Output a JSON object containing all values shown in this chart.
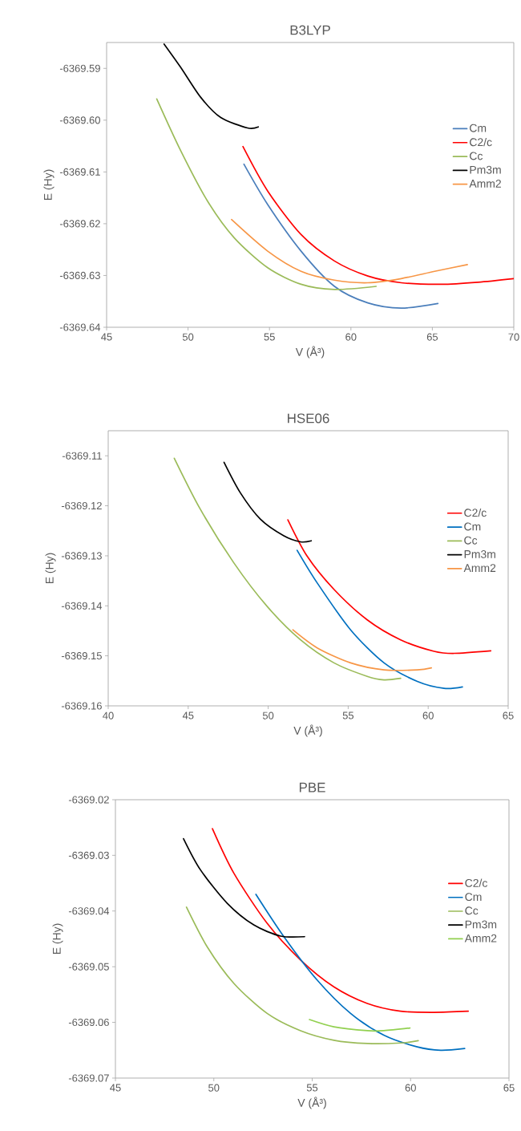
{
  "chart_data": [
    {
      "type": "line",
      "title": "B3LYP",
      "xlabel": "V (Å³)",
      "ylabel": "E  (Hy)",
      "xlim": [
        45,
        70
      ],
      "ylim": [
        -6369.64,
        -6369.585
      ],
      "xticks": [
        45,
        50,
        55,
        60,
        65,
        70
      ],
      "yticks": [
        -6369.59,
        {
          "value": -6369.6,
          "label": "-6369.60"
        },
        -6369.61,
        -6369.62,
        -6369.63,
        -6369.64
      ],
      "legend": "right",
      "series": [
        {
          "name": "Cm",
          "color": "#4a7ebb",
          "x": [
            53.43,
            54.89,
            56.94,
            58.99,
            61.04,
            63.09,
            65.34
          ],
          "values": [
            -6369.6085,
            -6369.6163,
            -6369.6253,
            -6369.6321,
            -6369.6353,
            -6369.6363,
            -6369.6354
          ]
        },
        {
          "name": "C2/c",
          "color": "#ff0000",
          "x": [
            53.37,
            54.89,
            56.94,
            58.99,
            61.04,
            63.09,
            65.55,
            67.8,
            70
          ],
          "values": [
            -6369.6051,
            -6369.6137,
            -6369.6221,
            -6369.6272,
            -6369.6301,
            -6369.6314,
            -6369.6317,
            -6369.6313,
            -6369.6306
          ]
        },
        {
          "name": "Cc",
          "color": "#9bbb59",
          "x": [
            48.08,
            49.55,
            51.19,
            52.83,
            54.89,
            56.94,
            58.99,
            61.55
          ],
          "values": [
            -6369.5959,
            -6369.6059,
            -6369.6156,
            -6369.6227,
            -6369.6285,
            -6369.6317,
            -6369.6327,
            -6369.6321
          ]
        },
        {
          "name": "Pm3m",
          "color": "#000000",
          "x": [
            48.53,
            49.55,
            50.78,
            52.01,
            53.65,
            54.31
          ],
          "values": [
            -6369.5853,
            -6369.5898,
            -6369.5956,
            -6369.5995,
            -6369.6015,
            -6369.6013
          ]
        },
        {
          "name": "Amm2",
          "color": "#f79646",
          "x": [
            52.67,
            54.89,
            56.94,
            58.99,
            61.04,
            63.09,
            65.14,
            67.15
          ],
          "values": [
            -6369.6192,
            -6369.6253,
            -6369.6292,
            -6369.6309,
            -6369.6314,
            -6369.6306,
            -6369.6292,
            -6369.6279
          ]
        }
      ]
    },
    {
      "type": "line",
      "title": "HSE06",
      "xlabel": "V (Å³)",
      "ylabel": "E (Hy)",
      "xlim": [
        40,
        65
      ],
      "ylim": [
        -6369.16,
        -6369.105
      ],
      "xticks": [
        40,
        45,
        50,
        55,
        60,
        65
      ],
      "yticks": [
        -6369.11,
        -6369.12,
        -6369.13,
        -6369.14,
        -6369.15,
        -6369.16
      ],
      "legend": "right",
      "series": [
        {
          "name": "C2/c",
          "color": "#ff0000",
          "x": [
            51.23,
            52.44,
            54.11,
            56.19,
            58.28,
            60.37,
            61.62,
            63.91
          ],
          "values": [
            -6369.1228,
            -6369.1301,
            -6369.1367,
            -6369.1428,
            -6369.1468,
            -6369.1491,
            -6369.1495,
            -6369.149
          ]
        },
        {
          "name": "Cm",
          "color": "#0070c0",
          "x": [
            51.81,
            53.06,
            55.15,
            57.24,
            59.32,
            60.99,
            62.14
          ],
          "values": [
            -6369.1289,
            -6369.1354,
            -6369.1448,
            -6369.1514,
            -6369.1551,
            -6369.1565,
            -6369.1562
          ]
        },
        {
          "name": "Cc",
          "color": "#9bbb59",
          "x": [
            44.13,
            45.76,
            47.85,
            49.93,
            52.02,
            54.11,
            56.19,
            57.24,
            58.28
          ],
          "values": [
            -6369.1105,
            -6369.1207,
            -6369.1314,
            -6369.1401,
            -6369.1468,
            -6369.1514,
            -6369.1541,
            -6369.1548,
            -6369.1545
          ]
        },
        {
          "name": "Pm3m",
          "color": "#000000",
          "x": [
            47.24,
            48.26,
            49.52,
            50.98,
            52.02,
            52.69
          ],
          "values": [
            -6369.1113,
            -6369.1174,
            -6369.1227,
            -6369.126,
            -6369.1272,
            -6369.127
          ]
        },
        {
          "name": "Amm2",
          "color": "#f79646",
          "x": [
            51.54,
            53.06,
            55.15,
            57.24,
            59.32,
            60.2
          ],
          "values": [
            -6369.1448,
            -6369.1484,
            -6369.1514,
            -6369.1528,
            -6369.1528,
            -6369.1524
          ]
        }
      ]
    },
    {
      "type": "line",
      "title": "PBE",
      "xlabel": "V (Å³)",
      "ylabel": "E (Hy)",
      "xlim": [
        45,
        65
      ],
      "ylim": [
        -6369.07,
        -6369.02
      ],
      "xticks": [
        45,
        50,
        55,
        60,
        65
      ],
      "yticks": [
        -6369.02,
        -6369.03,
        -6369.04,
        -6369.05,
        -6369.06,
        -6369.07
      ],
      "legend": "right",
      "series": [
        {
          "name": "C2/c",
          "color": "#ff0000",
          "x": [
            49.93,
            51.02,
            52.71,
            54.41,
            56.1,
            57.8,
            59.49,
            61.19,
            62.93
          ],
          "values": [
            -6369.0252,
            -6369.0332,
            -6369.0422,
            -6369.0488,
            -6369.0536,
            -6369.0566,
            -6369.058,
            -6369.0582,
            -6369.058
          ]
        },
        {
          "name": "Cm",
          "color": "#0070c0",
          "x": [
            52.14,
            53.56,
            55.25,
            56.95,
            58.64,
            60.34,
            61.53,
            62.75
          ],
          "values": [
            -6369.037,
            -6369.0446,
            -6369.0524,
            -6369.0584,
            -6369.0623,
            -6369.0644,
            -6369.065,
            -6369.0647
          ]
        },
        {
          "name": "Cc",
          "color": "#9bbb59",
          "x": [
            48.61,
            49.66,
            51.02,
            52.71,
            54.41,
            56.1,
            57.8,
            59.49,
            60.39
          ],
          "values": [
            -6369.0393,
            -6369.0464,
            -6369.053,
            -6369.0584,
            -6369.0615,
            -6369.0632,
            -6369.0638,
            -6369.0637,
            -6369.0633
          ]
        },
        {
          "name": "Pm3m",
          "color": "#000000",
          "x": [
            48.46,
            49.32,
            50.68,
            52.03,
            53.39,
            54.61
          ],
          "values": [
            -6369.027,
            -6369.0326,
            -6369.0386,
            -6369.0425,
            -6369.0445,
            -6369.0446
          ]
        },
        {
          "name": "Amm2",
          "color": "#92d050",
          "x": [
            54.86,
            56.1,
            57.8,
            58.64,
            59.97
          ],
          "values": [
            -6369.0595,
            -6369.0608,
            -6369.0615,
            -6369.0615,
            -6369.061
          ]
        }
      ]
    }
  ]
}
